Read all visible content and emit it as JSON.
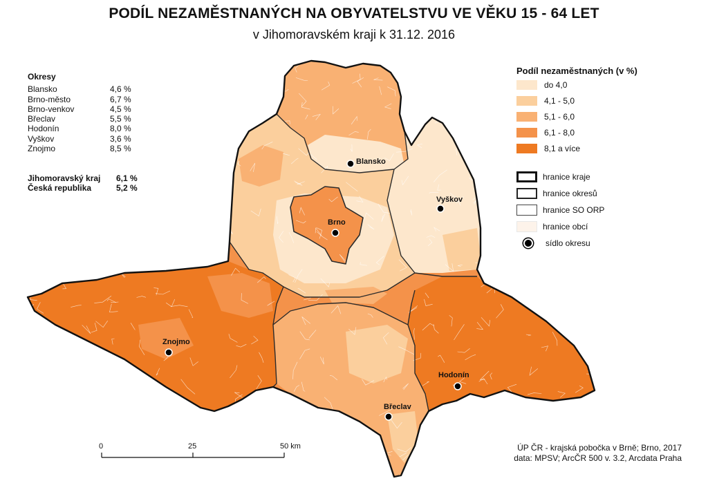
{
  "title": "PODÍL NEZAMĚSTNANÝCH NA OBYVATELSTVU VE VĚKU 15 - 64 LET",
  "subtitle": "v Jihomoravském kraji k 31.12. 2016",
  "districts": {
    "heading": "Okresy",
    "items": [
      {
        "name": "Blansko",
        "value": "4,6 %"
      },
      {
        "name": "Brno-město",
        "value": "6,7 %"
      },
      {
        "name": "Brno-venkov",
        "value": "4,5 %"
      },
      {
        "name": "Břeclav",
        "value": "5,5 %"
      },
      {
        "name": "Hodonín",
        "value": "8,0 %"
      },
      {
        "name": "Vyškov",
        "value": "3,6 %"
      },
      {
        "name": "Znojmo",
        "value": "8,5 %"
      }
    ]
  },
  "totals": [
    {
      "name": "Jihomoravský kraj",
      "value": "6,1 %"
    },
    {
      "name": "Česká republika",
      "value": "5,2 %"
    }
  ],
  "legend": {
    "heading": "Podíl nezaměstnaných (v %)",
    "classes": [
      {
        "label": "do 4,0",
        "color": "#fde7cc"
      },
      {
        "label": "4,1 - 5,0",
        "color": "#fbcf9d"
      },
      {
        "label": "5,1 - 6,0",
        "color": "#f9b173"
      },
      {
        "label": "6,1 - 8,0",
        "color": "#f4924a"
      },
      {
        "label": "8,1 a více",
        "color": "#ee7a22"
      }
    ],
    "boundaries": [
      {
        "label": "hranice kraje"
      },
      {
        "label": "hranice okresů"
      },
      {
        "label": "hranice SO ORP"
      },
      {
        "label": "hranice obcí"
      }
    ],
    "seat_label": "sídlo okresu"
  },
  "cities": {
    "blansko": "Blansko",
    "vyskov": "Vyškov",
    "brno": "Brno",
    "znojmo": "Znojmo",
    "hodonin": "Hodonín",
    "breclav": "Břeclav"
  },
  "scale": {
    "t0": "0",
    "t1": "25",
    "t2": "50 km"
  },
  "credit": {
    "line1": "ÚP ČR - krajská pobočka v Brně; Brno, 2017",
    "line2": "data: MPSV; ArcČR 500 v. 3.2, Arcdata Praha"
  }
}
